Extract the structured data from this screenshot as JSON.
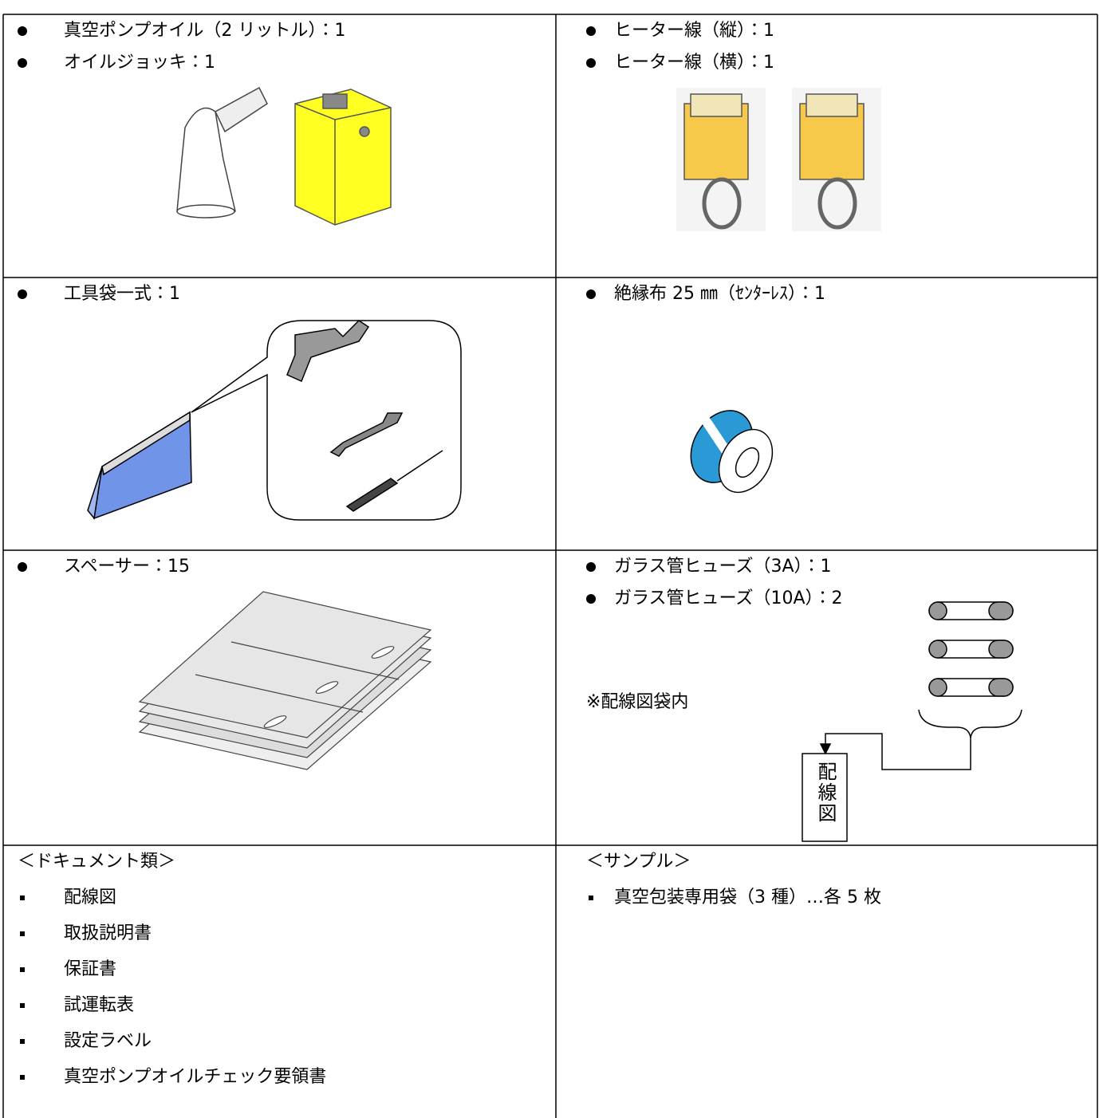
{
  "table": {
    "rows": [
      [
        {
          "items": [
            "真空ポンプオイル（2 リットル）：1",
            "オイルジョッキ：1"
          ]
        },
        {
          "items": [
            "ヒーター線（縦）：1",
            "ヒーター線（横）：1"
          ]
        }
      ],
      [
        {
          "items": [
            "工具袋一式：1"
          ]
        },
        {
          "items": [
            "絶縁布 25 ㎜（ｾﾝﾀｰﾚｽ）：1"
          ]
        }
      ],
      [
        {
          "items": [
            "スペーサー：15"
          ]
        },
        {
          "items": [
            "ガラス管ヒューズ（3A）：1",
            "ガラス管ヒューズ（10A）：2"
          ],
          "note": "※配線図袋内",
          "label": "配線図"
        }
      ],
      [
        {
          "heading": "＜ドキュメント類＞",
          "items": [
            "配線図",
            "取扱説明書",
            "保証書",
            "試運転表",
            "設定ラベル",
            "真空ポンプオイルチェック要領書"
          ]
        },
        {
          "heading": "＜サンプル＞",
          "items": [
            "真空包装専用袋（3 種）…各 5 枚"
          ]
        }
      ]
    ]
  }
}
